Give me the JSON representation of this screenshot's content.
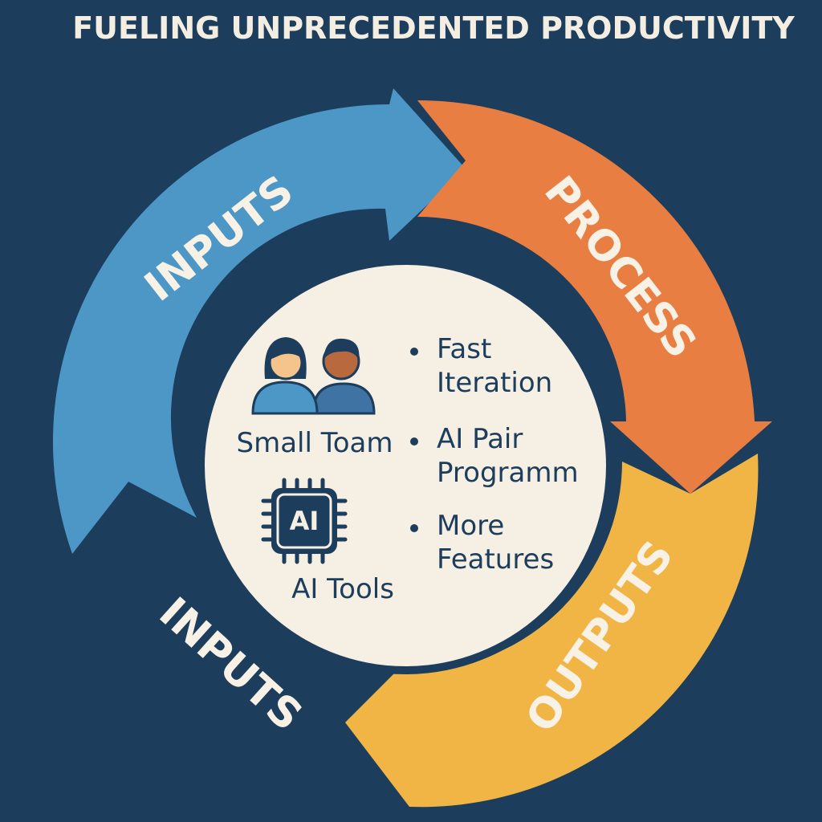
{
  "title": "FUELING UNPRECEDENTED PRODUCTIVITY",
  "colors": {
    "background": "#1c3d5c",
    "inputs": "#4d97c7",
    "process": "#e87e41",
    "outputs": "#f1b545",
    "hub": "#f6efe3",
    "ink": "#1c3d5c"
  },
  "cycle": {
    "inputs_label": "INPUTS",
    "process_label": "PROCESS",
    "outputs_label": "OUTPUTS",
    "outer_label": "INPUTS"
  },
  "hub": {
    "team": {
      "label": "Small Toam",
      "icon": "people-icon"
    },
    "ai": {
      "chip_text": "AI",
      "label": "AI Tools",
      "icon": "ai-chip-icon"
    },
    "bullets": [
      [
        "Fast",
        "Iteration"
      ],
      [
        "AI Pair",
        "Programm"
      ],
      [
        "More",
        "Features"
      ]
    ]
  }
}
